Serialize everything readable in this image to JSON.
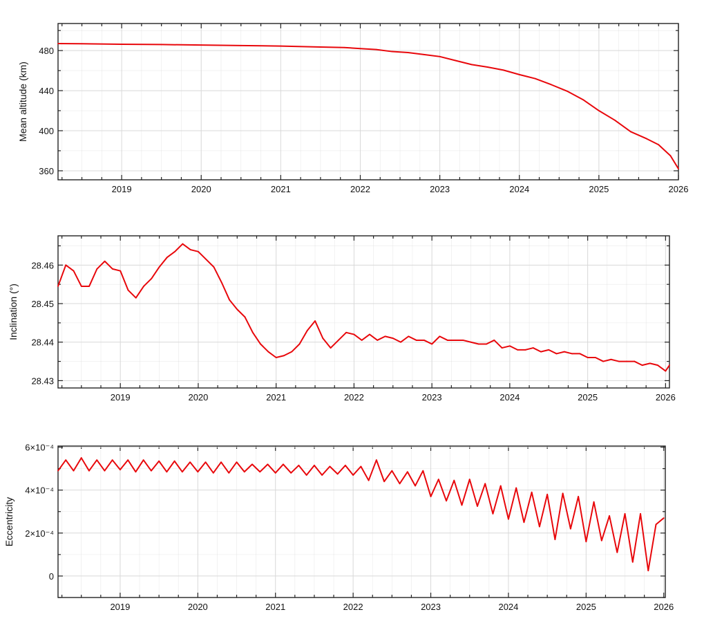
{
  "style": {
    "line_color": "#e8070b",
    "grid_color": "#d8d8d8",
    "axis_color": "#222222"
  },
  "chart_data": [
    {
      "type": "line",
      "ylabel": "Mean altitude (km)",
      "xlim": [
        2018.2,
        2026.0
      ],
      "ylim": [
        351,
        507
      ],
      "grid": true,
      "xticks": [
        2019,
        2020,
        2021,
        2022,
        2023,
        2024,
        2025,
        2026
      ],
      "xtick_labels": [
        "2019",
        "2020",
        "2021",
        "2022",
        "2023",
        "2024",
        "2025",
        "2026"
      ],
      "yticks": [
        360,
        400,
        440,
        480
      ],
      "ytick_labels": [
        "360",
        "400",
        "440",
        "480"
      ],
      "series": [
        {
          "x": [
            2018.2,
            2018.5,
            2019.0,
            2019.5,
            2020.0,
            2020.5,
            2021.0,
            2021.5,
            2021.8,
            2022.0,
            2022.2,
            2022.4,
            2022.6,
            2022.8,
            2023.0,
            2023.2,
            2023.4,
            2023.6,
            2023.8,
            2024.0,
            2024.2,
            2024.4,
            2024.6,
            2024.8,
            2025.0,
            2025.2,
            2025.4,
            2025.6,
            2025.75,
            2025.9,
            2026.0
          ],
          "y": [
            487,
            486.8,
            486.3,
            486,
            485.5,
            485,
            484.5,
            483.5,
            483,
            482,
            481,
            479,
            478,
            476,
            474,
            470,
            466,
            463.5,
            460.5,
            456,
            452,
            446,
            439.5,
            431,
            420,
            410.5,
            399,
            392,
            386,
            375,
            362
          ]
        }
      ]
    },
    {
      "type": "line",
      "ylabel": "Inclination (°)",
      "xlim": [
        2018.2,
        2026.05
      ],
      "ylim": [
        28.4281,
        28.4676
      ],
      "grid": true,
      "xticks": [
        2019,
        2020,
        2021,
        2022,
        2023,
        2024,
        2025,
        2026
      ],
      "xtick_labels": [
        "2019",
        "2020",
        "2021",
        "2022",
        "2023",
        "2024",
        "2025",
        "2026"
      ],
      "yticks": [
        28.43,
        28.44,
        28.45,
        28.46
      ],
      "ytick_labels": [
        "28.43",
        "28.44",
        "28.45",
        "28.46"
      ],
      "series": [
        {
          "x": [
            2018.2,
            2018.3,
            2018.4,
            2018.5,
            2018.6,
            2018.7,
            2018.8,
            2018.9,
            2019.0,
            2019.1,
            2019.2,
            2019.3,
            2019.4,
            2019.5,
            2019.6,
            2019.7,
            2019.8,
            2019.9,
            2020.0,
            2020.1,
            2020.2,
            2020.3,
            2020.4,
            2020.5,
            2020.6,
            2020.7,
            2020.8,
            2020.9,
            2021.0,
            2021.1,
            2021.2,
            2021.3,
            2021.4,
            2021.5,
            2021.6,
            2021.7,
            2021.8,
            2021.9,
            2022.0,
            2022.1,
            2022.2,
            2022.3,
            2022.4,
            2022.5,
            2022.6,
            2022.7,
            2022.8,
            2022.9,
            2023.0,
            2023.1,
            2023.2,
            2023.3,
            2023.4,
            2023.5,
            2023.6,
            2023.7,
            2023.8,
            2023.9,
            2024.0,
            2024.1,
            2024.2,
            2024.3,
            2024.4,
            2024.5,
            2024.6,
            2024.7,
            2024.8,
            2024.9,
            2025.0,
            2025.1,
            2025.2,
            2025.3,
            2025.4,
            2025.5,
            2025.6,
            2025.7,
            2025.8,
            2025.9,
            2026.0,
            2026.05
          ],
          "y": [
            28.4545,
            28.46,
            28.4585,
            28.4545,
            28.4545,
            28.459,
            28.461,
            28.459,
            28.4585,
            28.4535,
            28.4515,
            28.4545,
            28.4565,
            28.4595,
            28.462,
            28.4635,
            28.4655,
            28.464,
            28.4635,
            28.4615,
            28.4595,
            28.4555,
            28.451,
            28.4485,
            28.4465,
            28.4425,
            28.4395,
            28.4375,
            28.436,
            28.4365,
            28.4375,
            28.4395,
            28.443,
            28.4455,
            28.441,
            28.4385,
            28.4405,
            28.4425,
            28.442,
            28.4405,
            28.442,
            28.4405,
            28.4415,
            28.441,
            28.44,
            28.4415,
            28.4405,
            28.4405,
            28.4395,
            28.4415,
            28.4405,
            28.4405,
            28.4405,
            28.44,
            28.4395,
            28.4395,
            28.4405,
            28.4385,
            28.439,
            28.438,
            28.438,
            28.4385,
            28.4375,
            28.438,
            28.437,
            28.4375,
            28.437,
            28.437,
            28.436,
            28.436,
            28.435,
            28.4355,
            28.435,
            28.435,
            28.435,
            28.434,
            28.4345,
            28.434,
            28.4325,
            28.434
          ]
        }
      ]
    },
    {
      "type": "line",
      "ylabel": "Eccentricity",
      "xlim": [
        2018.2,
        2026.02
      ],
      "ylim": [
        -0.0001,
        0.000605
      ],
      "grid": true,
      "xticks": [
        2019,
        2020,
        2021,
        2022,
        2023,
        2024,
        2025,
        2026
      ],
      "xtick_labels": [
        "2019",
        "2020",
        "2021",
        "2022",
        "2023",
        "2024",
        "2025",
        "2026"
      ],
      "yticks": [
        0,
        0.0002,
        0.0004,
        0.0006
      ],
      "ytick_labels": [
        "0",
        "2×10⁻⁴",
        "4×10⁻⁴",
        "6×10⁻⁴"
      ],
      "series": [
        {
          "x": [
            2018.2,
            2018.3,
            2018.4,
            2018.5,
            2018.6,
            2018.7,
            2018.8,
            2018.9,
            2019.0,
            2019.1,
            2019.2,
            2019.3,
            2019.4,
            2019.5,
            2019.6,
            2019.7,
            2019.8,
            2019.9,
            2020.0,
            2020.1,
            2020.2,
            2020.3,
            2020.4,
            2020.5,
            2020.6,
            2020.7,
            2020.8,
            2020.9,
            2021.0,
            2021.1,
            2021.2,
            2021.3,
            2021.4,
            2021.5,
            2021.6,
            2021.7,
            2021.8,
            2021.9,
            2022.0,
            2022.1,
            2022.2,
            2022.3,
            2022.4,
            2022.5,
            2022.6,
            2022.7,
            2022.8,
            2022.9,
            2023.0,
            2023.1,
            2023.2,
            2023.3,
            2023.4,
            2023.5,
            2023.6,
            2023.7,
            2023.8,
            2023.9,
            2024.0,
            2024.1,
            2024.2,
            2024.3,
            2024.4,
            2024.5,
            2024.6,
            2024.7,
            2024.8,
            2024.9,
            2025.0,
            2025.1,
            2025.2,
            2025.3,
            2025.4,
            2025.5,
            2025.6,
            2025.7,
            2025.8,
            2025.9,
            2026.0
          ],
          "y": [
            0.00049,
            0.00054,
            0.00049,
            0.00055,
            0.00049,
            0.00054,
            0.00049,
            0.00054,
            0.000495,
            0.00054,
            0.000485,
            0.00054,
            0.00049,
            0.000535,
            0.000485,
            0.000535,
            0.000485,
            0.00053,
            0.000485,
            0.00053,
            0.00048,
            0.00053,
            0.00048,
            0.00053,
            0.000485,
            0.00052,
            0.000485,
            0.00052,
            0.00048,
            0.00052,
            0.00048,
            0.000515,
            0.00047,
            0.000515,
            0.00047,
            0.00051,
            0.000475,
            0.000515,
            0.00047,
            0.00051,
            0.000445,
            0.00054,
            0.00044,
            0.00049,
            0.00043,
            0.000485,
            0.00042,
            0.00049,
            0.00037,
            0.00045,
            0.00035,
            0.000445,
            0.00033,
            0.00045,
            0.000325,
            0.00043,
            0.00029,
            0.00042,
            0.000265,
            0.00041,
            0.00025,
            0.00039,
            0.00023,
            0.00038,
            0.00017,
            0.000385,
            0.00022,
            0.00037,
            0.00016,
            0.000345,
            0.000165,
            0.00028,
            0.00011,
            0.00029,
            6.5e-05,
            0.00029,
            2.5e-05,
            0.00024,
            0.00027
          ]
        }
      ]
    }
  ]
}
